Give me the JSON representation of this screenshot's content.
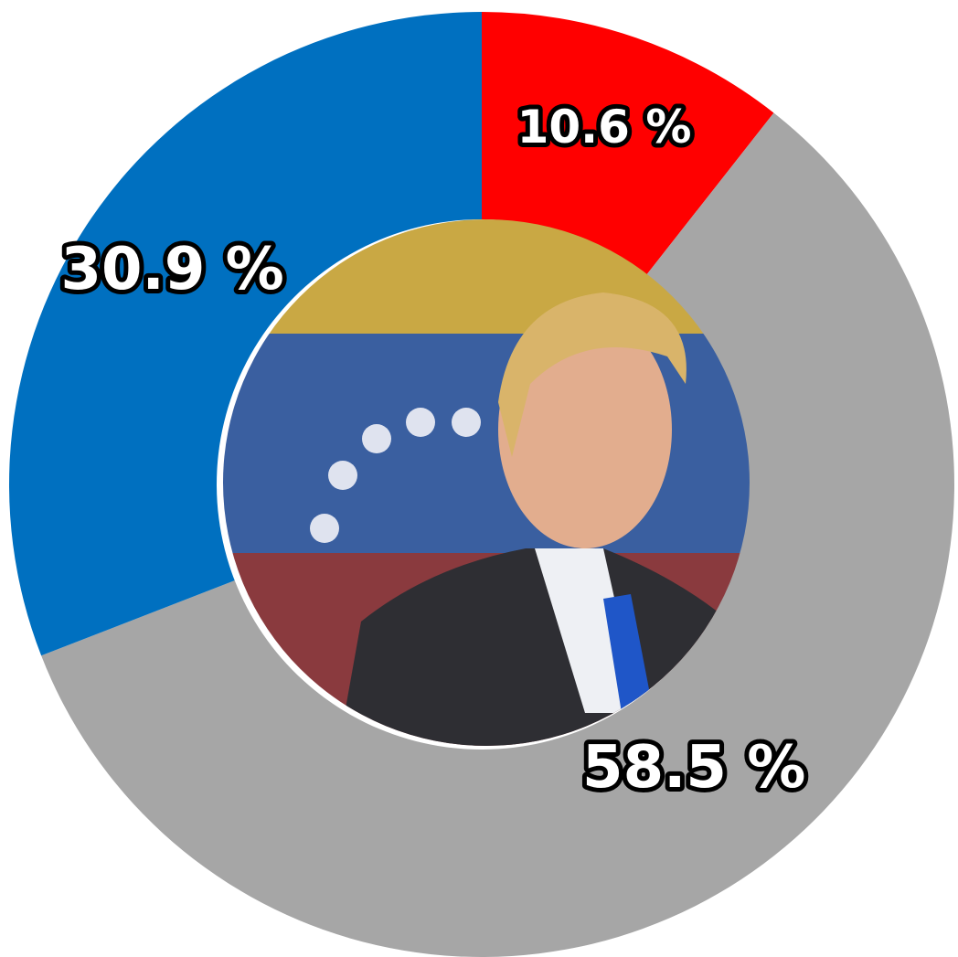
{
  "chart_data": {
    "type": "donut",
    "values": [
      10.6,
      58.5,
      30.9
    ],
    "value_labels": [
      "10.6 %",
      "58.5 %",
      "30.9 %"
    ],
    "colors": [
      "#ff0000",
      "#a6a6a6",
      "#0070c0"
    ]
  }
}
